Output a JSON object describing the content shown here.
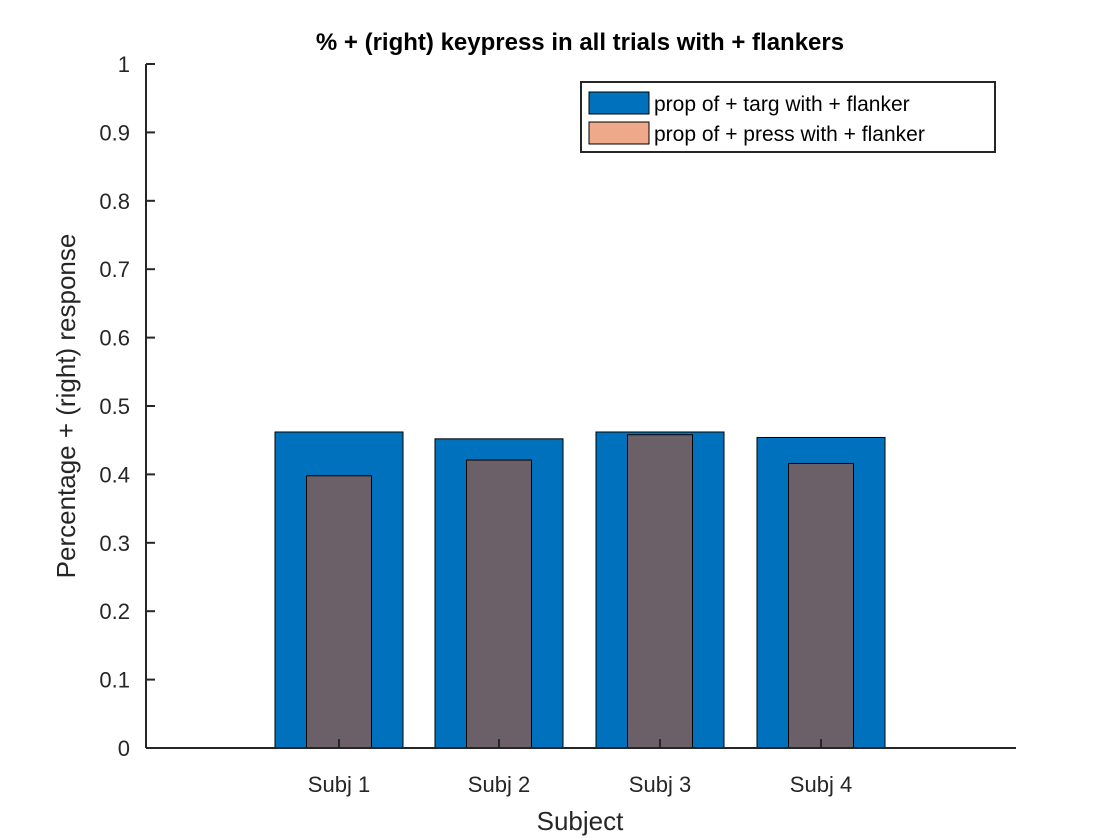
{
  "chart_data": {
    "type": "bar",
    "title": "% + (right) keypress in all trials with + flankers",
    "xlabel": "Subject",
    "ylabel": "Percentage + (right) response",
    "categories": [
      "Subj 1",
      "Subj 2",
      "Subj 3",
      "Subj 4"
    ],
    "ylim": [
      0,
      1
    ],
    "yticks": [
      "0",
      "0.1",
      "0.2",
      "0.3",
      "0.4",
      "0.5",
      "0.6",
      "0.7",
      "0.8",
      "0.9",
      "1"
    ],
    "grid": false,
    "legend_position": "top-right",
    "series": [
      {
        "name": "prop of + targ with + flanker",
        "color": "#0072BD",
        "values": [
          0.462,
          0.452,
          0.462,
          0.454
        ]
      },
      {
        "name": "prop of + press with + flanker",
        "color": "#EDA98A",
        "values": [
          0.398,
          0.421,
          0.458,
          0.416
        ]
      }
    ],
    "overlap_color": "#6B6068"
  }
}
